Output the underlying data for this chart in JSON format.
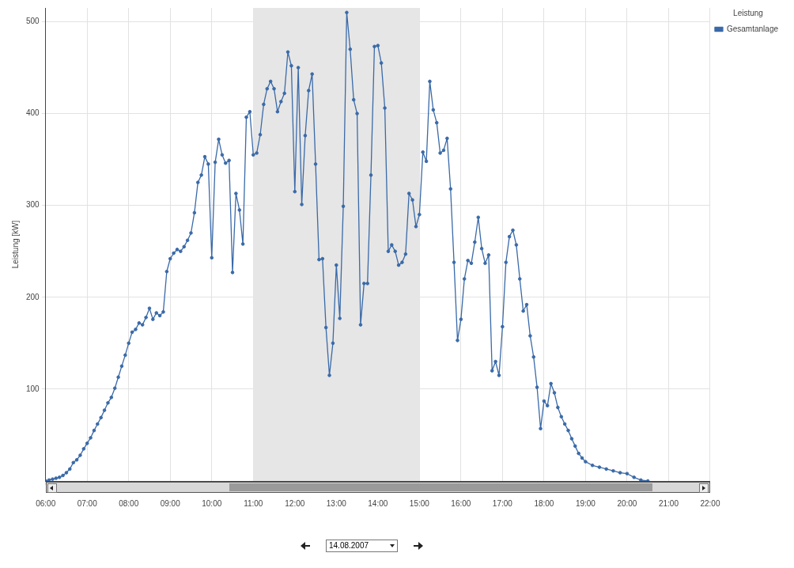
{
  "chart_data": {
    "type": "line",
    "ylabel": "Leistung [kW]",
    "legend_title": "Leistung",
    "legend": "top right",
    "marker": "circle",
    "line_style": "solid",
    "grid": true,
    "x": [
      6,
      6.083,
      6.167,
      6.25,
      6.333,
      6.417,
      6.5,
      6.583,
      6.667,
      6.75,
      6.833,
      6.917,
      7,
      7.083,
      7.167,
      7.25,
      7.333,
      7.417,
      7.5,
      7.583,
      7.667,
      7.75,
      7.833,
      7.917,
      8,
      8.083,
      8.167,
      8.25,
      8.333,
      8.417,
      8.5,
      8.583,
      8.667,
      8.75,
      8.833,
      8.917,
      9,
      9.083,
      9.167,
      9.25,
      9.333,
      9.417,
      9.5,
      9.583,
      9.667,
      9.75,
      9.833,
      9.917,
      10,
      10.083,
      10.167,
      10.25,
      10.333,
      10.417,
      10.5,
      10.583,
      10.667,
      10.75,
      10.833,
      10.917,
      11,
      11.083,
      11.167,
      11.25,
      11.333,
      11.417,
      11.5,
      11.583,
      11.667,
      11.75,
      11.833,
      11.917,
      12,
      12.083,
      12.167,
      12.25,
      12.333,
      12.417,
      12.5,
      12.583,
      12.667,
      12.75,
      12.833,
      12.917,
      13,
      13.083,
      13.167,
      13.25,
      13.333,
      13.417,
      13.5,
      13.583,
      13.667,
      13.75,
      13.833,
      13.917,
      14,
      14.083,
      14.167,
      14.25,
      14.333,
      14.417,
      14.5,
      14.583,
      14.667,
      14.75,
      14.833,
      14.917,
      15,
      15.083,
      15.167,
      15.25,
      15.333,
      15.417,
      15.5,
      15.583,
      15.667,
      15.75,
      15.833,
      15.917,
      16,
      16.083,
      16.167,
      16.25,
      16.333,
      16.417,
      16.5,
      16.583,
      16.667,
      16.75,
      16.833,
      16.917,
      17,
      17.083,
      17.167,
      17.25,
      17.333,
      17.417,
      17.5,
      17.583,
      17.667,
      17.75,
      17.833,
      17.917,
      18,
      18.083,
      18.167,
      18.25,
      18.333,
      18.417,
      18.5,
      18.583,
      18.667,
      18.75,
      18.833,
      18.917,
      19,
      19.167,
      19.333,
      19.5,
      19.667,
      19.833,
      20,
      20.167,
      20.333,
      20.5
    ],
    "series": [
      {
        "name": "Gesamtanlage",
        "color": "#3a6aa8",
        "values": [
          0,
          1,
          2,
          3,
          4,
          6,
          9,
          13,
          20,
          23,
          28,
          35,
          41,
          47,
          55,
          62,
          69,
          77,
          85,
          91,
          101,
          113,
          125,
          137,
          150,
          162,
          165,
          172,
          170,
          178,
          188,
          176,
          183,
          180,
          184,
          228,
          242,
          248,
          252,
          250,
          255,
          262,
          270,
          292,
          325,
          333,
          353,
          345,
          243,
          347,
          372,
          355,
          346,
          349,
          227,
          313,
          295,
          258,
          396,
          402,
          355,
          357,
          377,
          410,
          427,
          435,
          427,
          402,
          413,
          422,
          467,
          452,
          315,
          450,
          301,
          376,
          425,
          443,
          345,
          241,
          242,
          167,
          115,
          150,
          235,
          177,
          299,
          510,
          470,
          415,
          400,
          170,
          215,
          215,
          333,
          473,
          474,
          455,
          406,
          250,
          257,
          250,
          235,
          238,
          247,
          313,
          306,
          277,
          290,
          358,
          348,
          435,
          404,
          390,
          357,
          360,
          373,
          318,
          238,
          153,
          176,
          220,
          240,
          237,
          260,
          287,
          253,
          237,
          246,
          120,
          130,
          115,
          168,
          238,
          266,
          273,
          257,
          220,
          185,
          192,
          158,
          135,
          102,
          57,
          87,
          82,
          106,
          96,
          80,
          70,
          62,
          55,
          46,
          38,
          30,
          25,
          21,
          17,
          15,
          13,
          11,
          9,
          8,
          4,
          1,
          0
        ]
      }
    ],
    "xlim": [
      6,
      22
    ],
    "xticks": [
      {
        "value": 6,
        "label": "06:00"
      },
      {
        "value": 7,
        "label": "07:00"
      },
      {
        "value": 8,
        "label": "08:00"
      },
      {
        "value": 9,
        "label": "09:00"
      },
      {
        "value": 10,
        "label": "10:00"
      },
      {
        "value": 11,
        "label": "11:00"
      },
      {
        "value": 12,
        "label": "12:00"
      },
      {
        "value": 13,
        "label": "13:00"
      },
      {
        "value": 14,
        "label": "14:00"
      },
      {
        "value": 15,
        "label": "15:00"
      },
      {
        "value": 16,
        "label": "16:00"
      },
      {
        "value": 17,
        "label": "17:00"
      },
      {
        "value": 18,
        "label": "18:00"
      },
      {
        "value": 19,
        "label": "19:00"
      },
      {
        "value": 20,
        "label": "20:00"
      },
      {
        "value": 21,
        "label": "21:00"
      },
      {
        "value": 22,
        "label": "22:00"
      }
    ],
    "ylim": [
      0,
      515
    ],
    "yticks": [
      100,
      200,
      300,
      400,
      500
    ],
    "bands": [
      {
        "axis": "x",
        "from": 11,
        "to": 15,
        "color": "#e6e6e6"
      }
    ],
    "annotations": [
      "14.08.2007"
    ]
  }
}
